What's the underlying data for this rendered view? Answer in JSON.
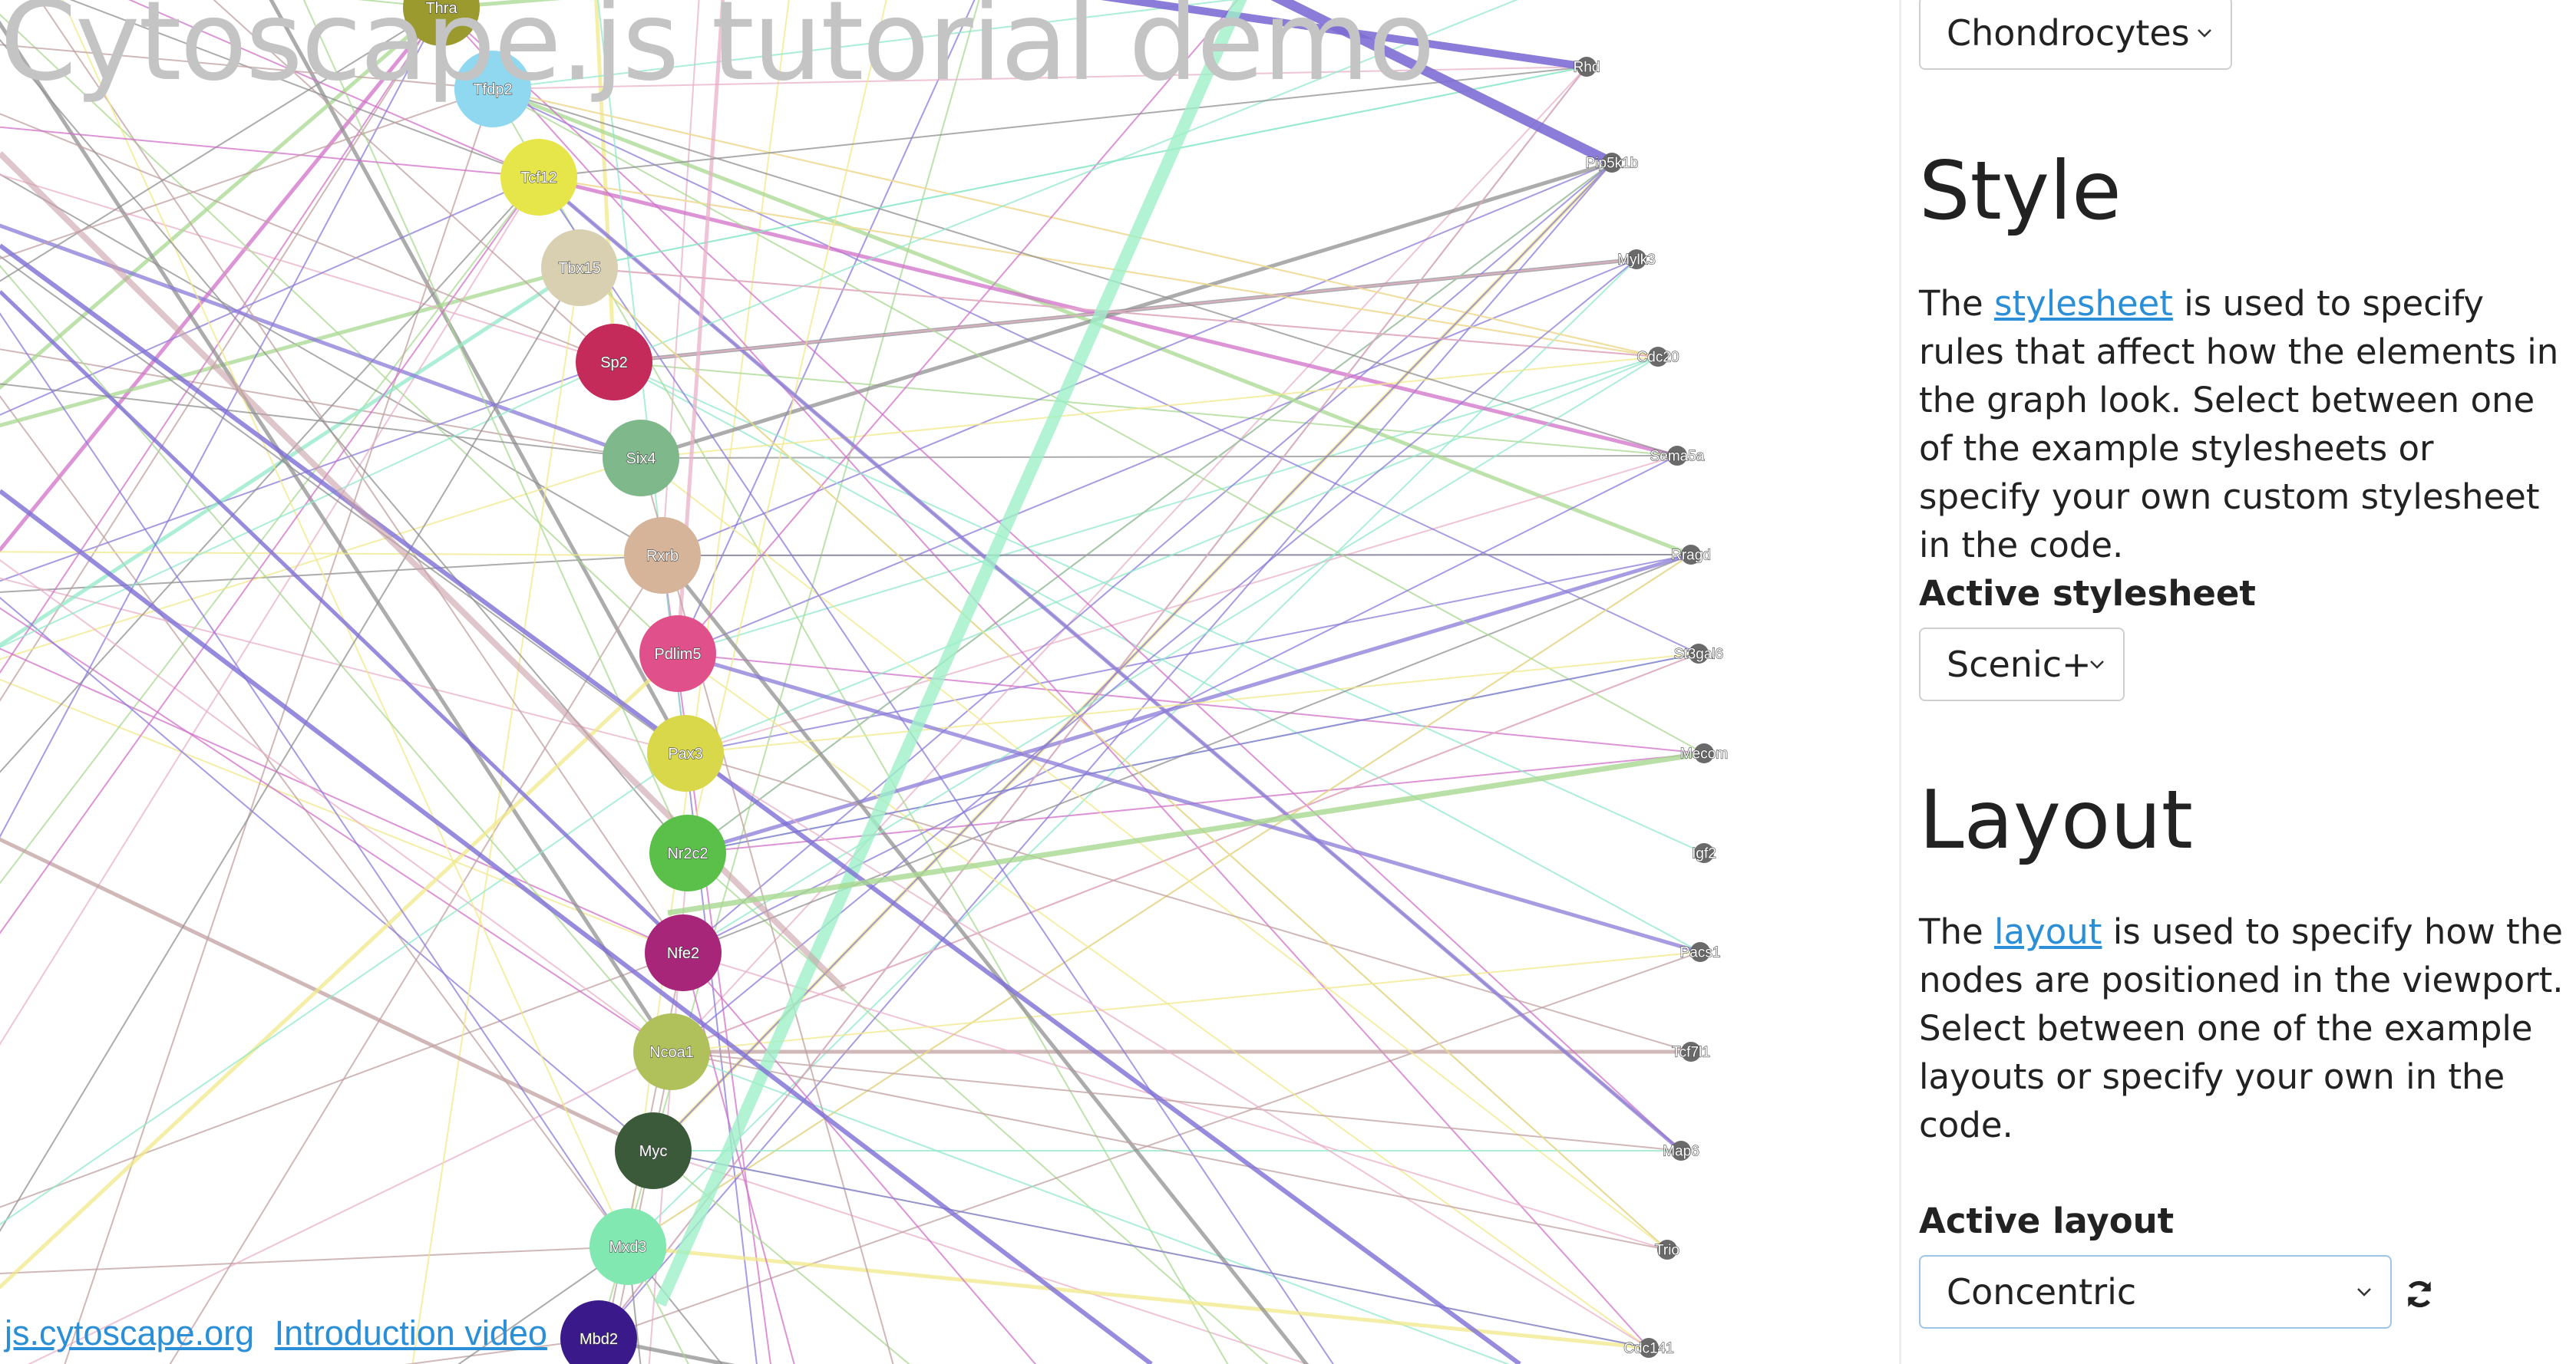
{
  "title": "Cytoscape.js tutorial demo",
  "links": [
    "js.cytoscape.org",
    "Introduction video"
  ],
  "panel": {
    "dataset_select": {
      "value": "Chondrocytes"
    },
    "style": {
      "heading": "Style",
      "text_before": "The ",
      "link": "stylesheet",
      "text_after": " is used to specify rules that affect how the elements in the graph look. Select between one of the example stylesheets or specify your own custom stylesheet in the code.",
      "select_label": "Active stylesheet",
      "select_value": "Scenic+"
    },
    "layout": {
      "heading": "Layout",
      "text_before": "The ",
      "link": "layout",
      "text_after": " is used to specify how the nodes are positioned in the viewport. Select between one of the example layouts or specify your own in the code.",
      "select_label": "Active layout",
      "select_value": "Concentric",
      "refresh_icon": "refresh-icon"
    }
  },
  "graph": {
    "tf_nodes": [
      {
        "label": "Thra",
        "color": "#9a9a2e"
      },
      {
        "label": "Tfdp2",
        "color": "#8fd8f0"
      },
      {
        "label": "Tcf12",
        "color": "#e6e64a"
      },
      {
        "label": "Tbx15",
        "color": "#d8d0b0"
      },
      {
        "label": "Sp2",
        "color": "#c42a5a"
      },
      {
        "label": "Six4",
        "color": "#7fb88a"
      },
      {
        "label": "Rxrb",
        "color": "#d6b49a"
      },
      {
        "label": "Pdlim5",
        "color": "#e0508a"
      },
      {
        "label": "Pax3",
        "color": "#d8d84a"
      },
      {
        "label": "Nr2c2",
        "color": "#5ac04a"
      },
      {
        "label": "Nfe2",
        "color": "#a8267a"
      },
      {
        "label": "Ncoa1",
        "color": "#b0c05a"
      },
      {
        "label": "Myc",
        "color": "#3a5a3a"
      },
      {
        "label": "Mxd3",
        "color": "#80e8b0"
      },
      {
        "label": "Mbd2",
        "color": "#3a1a8a"
      }
    ],
    "target_nodes": [
      "Rhd",
      "Pip5k1b",
      "Mylk3",
      "Cdc20",
      "Sema5a",
      "Rragd",
      "St3gal6",
      "Mecom",
      "Igf2",
      "Pacs1",
      "Tcf7l1",
      "Map6",
      "Trio",
      "Cdc141"
    ],
    "edge_colors": [
      "#8a7ad8",
      "#f0e88a",
      "#d070c8",
      "#a8d890",
      "#90e8c8",
      "#c0a0a0",
      "#909090",
      "#e8b0c8"
    ]
  }
}
